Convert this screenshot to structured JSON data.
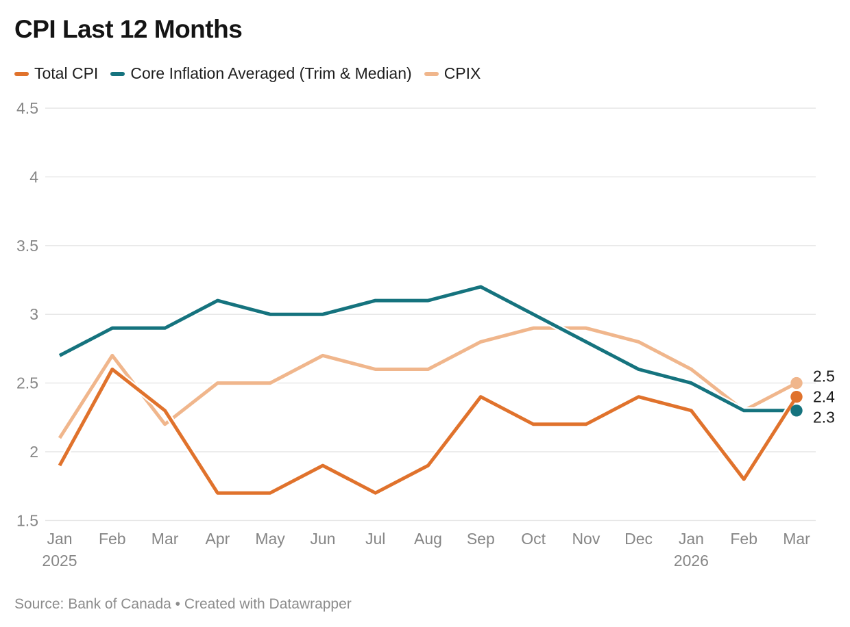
{
  "footer": {
    "text": "Source: Bank of Canada • Created with Datawrapper"
  },
  "chart_data": {
    "type": "line",
    "title": "CPI Last 12 Months",
    "categories": [
      {
        "label": "Jan",
        "year": "2025"
      },
      {
        "label": "Feb",
        "year": ""
      },
      {
        "label": "Mar",
        "year": ""
      },
      {
        "label": "Apr",
        "year": ""
      },
      {
        "label": "May",
        "year": ""
      },
      {
        "label": "Jun",
        "year": ""
      },
      {
        "label": "Jul",
        "year": ""
      },
      {
        "label": "Aug",
        "year": ""
      },
      {
        "label": "Sep",
        "year": ""
      },
      {
        "label": "Oct",
        "year": ""
      },
      {
        "label": "Nov",
        "year": ""
      },
      {
        "label": "Dec",
        "year": ""
      },
      {
        "label": "Jan",
        "year": "2026"
      },
      {
        "label": "Feb",
        "year": ""
      },
      {
        "label": "Mar",
        "year": ""
      }
    ],
    "series": [
      {
        "name": "Total CPI",
        "color": "#E0722C",
        "values": [
          1.9,
          2.6,
          2.3,
          1.7,
          1.7,
          1.9,
          1.7,
          1.9,
          2.4,
          2.2,
          2.2,
          2.4,
          2.3,
          1.8,
          2.4
        ],
        "end_label": "2.4"
      },
      {
        "name": "Core Inflation Averaged (Trim & Median)",
        "color": "#15737E",
        "values": [
          2.7,
          2.9,
          2.9,
          3.1,
          3.0,
          3.0,
          3.1,
          3.1,
          3.2,
          3.0,
          2.8,
          2.6,
          2.5,
          2.3,
          2.3
        ],
        "end_label": "2.3"
      },
      {
        "name": "CPIX",
        "color": "#F0B68C",
        "values": [
          2.1,
          2.7,
          2.2,
          2.5,
          2.5,
          2.7,
          2.6,
          2.6,
          2.8,
          2.9,
          2.9,
          2.8,
          2.6,
          2.3,
          2.5
        ],
        "end_label": "2.5"
      }
    ],
    "y_ticks": [
      4.5,
      4,
      3.5,
      3,
      2.5,
      2,
      1.5
    ],
    "y_tick_labels": [
      "4.5",
      "4",
      "3.5",
      "3",
      "2.5",
      "2",
      "1.5"
    ],
    "ylim": [
      1.5,
      4.5
    ],
    "grid": true,
    "legend_position": "top",
    "colors": {
      "grid": "#E5E5E5",
      "axis_text": "#868686",
      "end_label_text": "#1a1a1a"
    }
  }
}
